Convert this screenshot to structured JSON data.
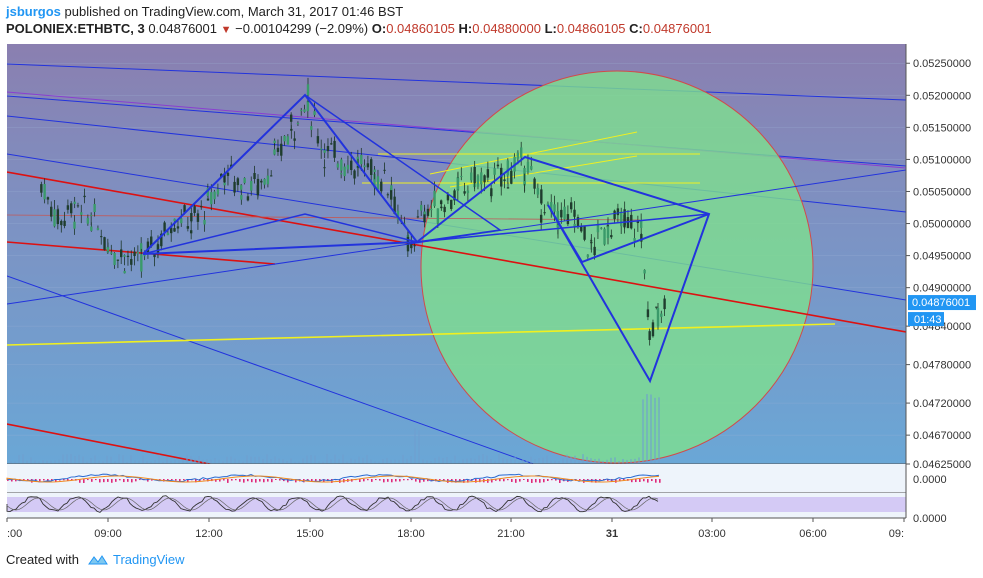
{
  "header": {
    "author": "jsburgos",
    "published_text": "published on TradingView.com, March 31, 2017 01:46 BST",
    "symbol": "POLONIEX:ETHBTC, 3",
    "last": "0.04876001",
    "change": "−0.00104299 (−2.09%)",
    "open_label": "O:",
    "open": "0.04860105",
    "high_label": "H:",
    "high": "0.04880000",
    "low_label": "L:",
    "low": "0.04860105",
    "close_label": "C:",
    "close": "0.04876001"
  },
  "footer": {
    "created_with": "Created with",
    "brand": "TradingView"
  },
  "colors": {
    "candle_up": "#3a9a6a",
    "candle_down": "#1f3d2e",
    "pattern_lines": "#2233dd",
    "red_lines": "#dd1111",
    "yellow_lines": "#f0f020",
    "circle_fill": "#7ee08f",
    "circle_stroke": "#d24a4a",
    "price_tag": "#2196f3"
  },
  "chart_data": {
    "type": "candlestick",
    "y_scale": "linear",
    "ylim": [
      0.04625,
      0.0528
    ],
    "y_ticks": [
      "0.05250000",
      "0.05200000",
      "0.05150000",
      "0.05100000",
      "0.05050000",
      "0.05000000",
      "0.04950000",
      "0.04900000",
      "0.04840000",
      "0.04780000",
      "0.04720000",
      "0.04670000",
      "0.04625000"
    ],
    "x_ticks": [
      ":00",
      "09:00",
      "12:00",
      "15:00",
      "18:00",
      "21:00",
      "31",
      "03:00",
      "06:00",
      "09:"
    ],
    "price_tag": "0.04876001",
    "countdown": "01:43",
    "price_path": [
      [
        "07:00",
        0.0506
      ],
      [
        "07:30",
        0.0501
      ],
      [
        "08:00",
        0.0502
      ],
      [
        "08:30",
        0.0501
      ],
      [
        "09:00",
        0.0497
      ],
      [
        "09:30",
        0.0495
      ],
      [
        "10:00",
        0.0494
      ],
      [
        "10:30",
        0.0497
      ],
      [
        "11:00",
        0.0501
      ],
      [
        "11:30",
        0.05
      ],
      [
        "12:00",
        0.0503
      ],
      [
        "12:30",
        0.0508
      ],
      [
        "13:00",
        0.0506
      ],
      [
        "13:30",
        0.0506
      ],
      [
        "14:00",
        0.051
      ],
      [
        "14:30",
        0.0515
      ],
      [
        "15:00",
        0.0519
      ],
      [
        "15:30",
        0.0511
      ],
      [
        "16:00",
        0.051
      ],
      [
        "16:30",
        0.0509
      ],
      [
        "17:00",
        0.0508
      ],
      [
        "17:30",
        0.0506
      ],
      [
        "18:00",
        0.0496
      ],
      [
        "18:30",
        0.0502
      ],
      [
        "19:00",
        0.0503
      ],
      [
        "19:30",
        0.0505
      ],
      [
        "20:00",
        0.0507
      ],
      [
        "20:30",
        0.0506
      ],
      [
        "21:00",
        0.0508
      ],
      [
        "21:30",
        0.0509
      ],
      [
        "22:00",
        0.0503
      ],
      [
        "22:30",
        0.0501
      ],
      [
        "23:00",
        0.0501
      ],
      [
        "23:30",
        0.0496
      ],
      [
        "00:00",
        0.05
      ],
      [
        "00:30",
        0.05
      ],
      [
        "01:00",
        0.0499
      ],
      [
        "01:15",
        0.0482
      ],
      [
        "01:30",
        0.0487
      ],
      [
        "01:46",
        0.04876
      ]
    ],
    "oscillator_1": {
      "tick": "0.0000"
    },
    "oscillator_2": {
      "tick": "0.0000"
    }
  }
}
